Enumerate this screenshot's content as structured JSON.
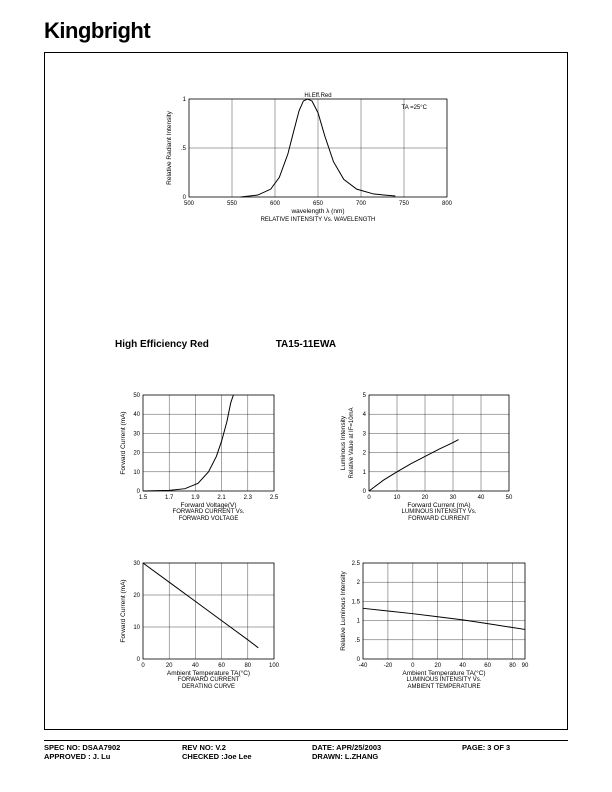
{
  "logo": "Kingbright",
  "section": {
    "left_title": "High Efficiency Red",
    "part_number": "TA15-11EWA"
  },
  "chart1": {
    "type": "line",
    "title_top": "Hi.Eff.Red",
    "annotation": "TA =25°C",
    "xlabel": "wavelength λ (nm)",
    "caption": "RELATIVE INTENSITY Vs. WAVELENGTH",
    "ylabel": "Relative Radiant Intensity",
    "xlim": [
      500,
      800
    ],
    "xtick_step": 50,
    "ylim": [
      0,
      1.0
    ],
    "ytick_step": 0.5,
    "grid_color": "#000000",
    "line_color": "#000000",
    "background_color": "#ffffff",
    "points": [
      [
        560,
        0.0
      ],
      [
        580,
        0.02
      ],
      [
        595,
        0.08
      ],
      [
        605,
        0.2
      ],
      [
        615,
        0.44
      ],
      [
        622,
        0.68
      ],
      [
        628,
        0.88
      ],
      [
        633,
        0.98
      ],
      [
        638,
        1.0
      ],
      [
        643,
        0.98
      ],
      [
        650,
        0.86
      ],
      [
        658,
        0.62
      ],
      [
        668,
        0.36
      ],
      [
        680,
        0.18
      ],
      [
        695,
        0.08
      ],
      [
        715,
        0.03
      ],
      [
        740,
        0.01
      ]
    ]
  },
  "chart2": {
    "type": "line",
    "xlabel": "Forward Voltage(V)",
    "caption1": "FORWARD CURRENT Vs.",
    "caption2": "FORWARD VOLTAGE",
    "ylabel": "Forward Current (mA)",
    "xlim": [
      1.5,
      2.5
    ],
    "xticks": [
      1.5,
      1.7,
      1.9,
      2.1,
      2.3,
      2.5
    ],
    "ylim": [
      0,
      50
    ],
    "ytick_step": 10,
    "grid_color": "#000000",
    "line_color": "#000000",
    "points": [
      [
        1.5,
        0
      ],
      [
        1.7,
        0.3
      ],
      [
        1.82,
        1.2
      ],
      [
        1.92,
        4
      ],
      [
        2.0,
        10
      ],
      [
        2.06,
        18
      ],
      [
        2.1,
        26
      ],
      [
        2.14,
        36
      ],
      [
        2.17,
        46
      ],
      [
        2.19,
        50
      ]
    ]
  },
  "chart3": {
    "type": "line",
    "xlabel": "Forward Current (mA)",
    "caption1": "LUMINOUS INTENSITY Vs.",
    "caption2": "FORWARD CURRENT",
    "ylabel1": "Luminous Intensity",
    "ylabel2": "Relative Value at IF=10mA",
    "xlim": [
      0,
      50
    ],
    "xtick_step": 10,
    "ylim": [
      0,
      5.0
    ],
    "ytick_step": 1.0,
    "grid_color": "#000000",
    "line_color": "#000000",
    "points": [
      [
        0,
        0
      ],
      [
        5,
        0.55
      ],
      [
        10,
        1.0
      ],
      [
        15,
        1.42
      ],
      [
        20,
        1.8
      ],
      [
        25,
        2.18
      ],
      [
        30,
        2.52
      ],
      [
        32,
        2.68
      ]
    ]
  },
  "chart4": {
    "type": "line",
    "xlabel": "Ambient Temperature TA(°C)",
    "caption1": "FORWARD CURRENT",
    "caption2": "DERATING CURVE",
    "ylabel": "Forward Current (mA)",
    "xlim": [
      0,
      100
    ],
    "xtick_step": 20,
    "ylim": [
      0,
      30
    ],
    "ytick_step": 10,
    "grid_color": "#000000",
    "line_color": "#000000",
    "points": [
      [
        0,
        30
      ],
      [
        20,
        24
      ],
      [
        40,
        18
      ],
      [
        60,
        12
      ],
      [
        80,
        6
      ],
      [
        88,
        3.5
      ]
    ]
  },
  "chart5": {
    "type": "line",
    "xlabel": "Ambient Temperature TA(°C)",
    "caption1": "LUMINOUS INTENSITY Vs.",
    "caption2": "AMBIENT TEMPERATURE",
    "ylabel": "Relative Luminous Intensity",
    "xlim": [
      -40,
      90
    ],
    "xticks": [
      -40,
      -20,
      0,
      20,
      40,
      60,
      80,
      90
    ],
    "ylim": [
      0,
      2.5
    ],
    "ytick_step": 0.5,
    "grid_color": "#000000",
    "line_color": "#000000",
    "points": [
      [
        -40,
        1.32
      ],
      [
        -20,
        1.25
      ],
      [
        0,
        1.18
      ],
      [
        20,
        1.1
      ],
      [
        40,
        1.02
      ],
      [
        60,
        0.92
      ],
      [
        80,
        0.82
      ],
      [
        90,
        0.77
      ]
    ]
  },
  "footer": {
    "spec_no_label": "SPEC NO:",
    "spec_no": "DSAA7902",
    "rev_no_label": "REV NO:",
    "rev_no": "V.2",
    "date_label": "DATE:",
    "date": "APR/25/2003",
    "page_label": "PAGE:",
    "page": "3 OF 3",
    "approved_label": "APPROVED :",
    "approved": "J. Lu",
    "checked_label": "CHECKED :",
    "checked": "Joe Lee",
    "drawn_label": "DRAWN:",
    "drawn": "L.ZHANG"
  }
}
